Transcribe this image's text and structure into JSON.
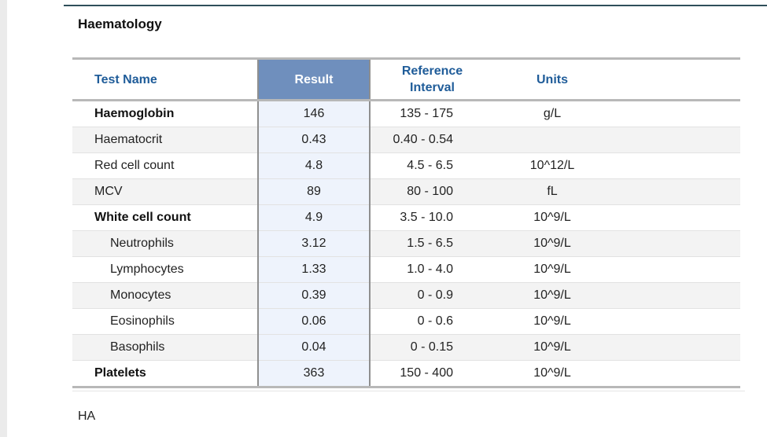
{
  "section_title": "Haematology",
  "table": {
    "headers": {
      "test_name": "Test Name",
      "result": "Result",
      "reference_line1": "Reference",
      "reference_line2": "Interval",
      "units": "Units"
    },
    "rows": [
      {
        "name": "Haemoglobin",
        "result": "146",
        "reference": "135 - 175",
        "units": "g/L",
        "bold": true,
        "indent": false
      },
      {
        "name": "Haematocrit",
        "result": "0.43",
        "reference": "0.40 - 0.54",
        "units": "",
        "bold": false,
        "indent": false
      },
      {
        "name": "Red cell count",
        "result": "4.8",
        "reference": "4.5 - 6.5",
        "units": "10^12/L",
        "bold": false,
        "indent": false
      },
      {
        "name": "MCV",
        "result": "89",
        "reference": "80 - 100",
        "units": "fL",
        "bold": false,
        "indent": false
      },
      {
        "name": "White cell count",
        "result": "4.9",
        "reference": "3.5 - 10.0",
        "units": "10^9/L",
        "bold": true,
        "indent": false
      },
      {
        "name": "Neutrophils",
        "result": "3.12",
        "reference": "1.5 - 6.5",
        "units": "10^9/L",
        "bold": false,
        "indent": true
      },
      {
        "name": "Lymphocytes",
        "result": "1.33",
        "reference": "1.0 - 4.0",
        "units": "10^9/L",
        "bold": false,
        "indent": true
      },
      {
        "name": "Monocytes",
        "result": "0.39",
        "reference": "0 - 0.9",
        "units": "10^9/L",
        "bold": false,
        "indent": true
      },
      {
        "name": "Eosinophils",
        "result": "0.06",
        "reference": "0 - 0.6",
        "units": "10^9/L",
        "bold": false,
        "indent": true
      },
      {
        "name": "Basophils",
        "result": "0.04",
        "reference": "0 - 0.15",
        "units": "10^9/L",
        "bold": false,
        "indent": true
      },
      {
        "name": "Platelets",
        "result": "363",
        "reference": "150 - 400",
        "units": "10^9/L",
        "bold": true,
        "indent": false
      }
    ]
  },
  "footer_text": "HA",
  "colors": {
    "header_text": "#1f5c99",
    "result_header_bg": "#6f8fbd",
    "result_column_bg": "#eef3fc"
  }
}
